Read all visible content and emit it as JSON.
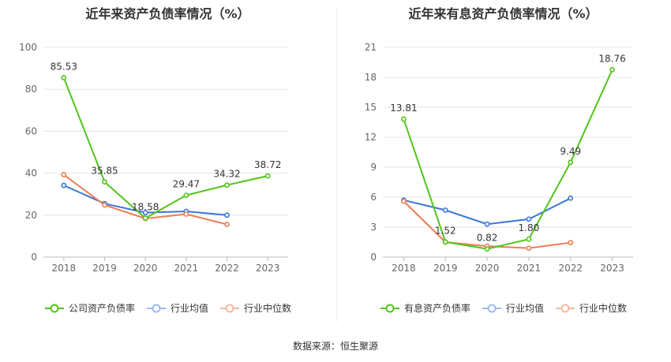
{
  "source_label": "数据来源：恒生聚源",
  "chart_data": [
    {
      "type": "line",
      "title": "近年来资产负债率情况（%）",
      "categories": [
        "2018",
        "2019",
        "2020",
        "2021",
        "2022",
        "2023"
      ],
      "ylim": [
        0,
        100
      ],
      "yticks": [
        "0",
        "20",
        "40",
        "60",
        "80",
        "100"
      ],
      "ytick_values": [
        0,
        20,
        40,
        60,
        80,
        100
      ],
      "grid": true,
      "legend_position": "bottom",
      "series": [
        {
          "name": "公司资产负债率",
          "color": "#52c41a",
          "values": [
            85.53,
            35.85,
            18.58,
            29.47,
            34.32,
            38.72
          ],
          "data_labels": [
            "85.53",
            "35.85",
            "18.58",
            "29.47",
            "34.32",
            "38.72"
          ]
        },
        {
          "name": "行业均值",
          "color": "#3b76d8",
          "values": [
            34.2,
            25.5,
            21.2,
            21.8,
            20.0,
            null
          ]
        },
        {
          "name": "行业中位数",
          "color": "#ed7d52",
          "values": [
            39.3,
            24.8,
            18.4,
            20.5,
            15.6,
            null
          ]
        }
      ]
    },
    {
      "type": "line",
      "title": "近年来有息资产负债率情况（%）",
      "categories": [
        "2018",
        "2019",
        "2020",
        "2021",
        "2022",
        "2023"
      ],
      "ylim": [
        0,
        21
      ],
      "yticks": [
        "0",
        "3",
        "6",
        "9",
        "12",
        "15",
        "18",
        "21"
      ],
      "ytick_values": [
        0,
        3,
        6,
        9,
        12,
        15,
        18,
        21
      ],
      "grid": true,
      "legend_position": "bottom",
      "series": [
        {
          "name": "有息资产负债率",
          "color": "#52c41a",
          "values": [
            13.81,
            1.52,
            0.82,
            1.8,
            9.49,
            18.76
          ],
          "data_labels": [
            "13.81",
            "1.52",
            "0.82",
            "1.80",
            "9.49",
            "18.76"
          ]
        },
        {
          "name": "行业均值",
          "color": "#3b76d8",
          "values": [
            5.7,
            4.7,
            3.3,
            3.8,
            5.9,
            null
          ]
        },
        {
          "name": "行业中位数",
          "color": "#ed7d52",
          "values": [
            5.6,
            1.5,
            1.1,
            0.9,
            1.45,
            null
          ]
        }
      ]
    }
  ]
}
